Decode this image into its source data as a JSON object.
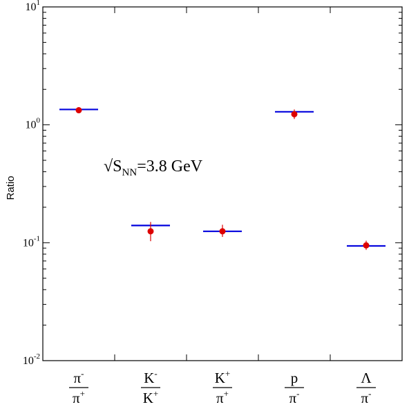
{
  "chart_data": {
    "type": "scatter",
    "ylabel": "Ratio",
    "yscale": "log",
    "ylim": [
      0.01,
      10
    ],
    "y_ticks": [
      {
        "base": "10",
        "exp": "-2",
        "value": 0.01
      },
      {
        "base": "10",
        "exp": "-1",
        "value": 0.1
      },
      {
        "base": "10",
        "exp": "0",
        "value": 1
      },
      {
        "base": "10",
        "exp": "1",
        "value": 10
      }
    ],
    "categories": [
      {
        "num": "π",
        "num_sup": "-",
        "den": "π",
        "den_sup": "+"
      },
      {
        "num": "K",
        "num_sup": "-",
        "den": "K",
        "den_sup": "+"
      },
      {
        "num": "K",
        "num_sup": "+",
        "den": "π",
        "den_sup": "+"
      },
      {
        "num": "p",
        "num_sup": "",
        "den": "π",
        "den_sup": "-"
      },
      {
        "num": "Λ",
        "num_sup": "",
        "den": "π",
        "den_sup": "-"
      }
    ],
    "series": [
      {
        "type": "scatter",
        "color": "#dd0000",
        "values": [
          1.33,
          0.125,
          0.125,
          1.23,
          0.095
        ],
        "err_low": [
          1.26,
          0.103,
          0.112,
          1.12,
          0.087
        ],
        "err_high": [
          1.4,
          0.15,
          0.142,
          1.35,
          0.104
        ]
      },
      {
        "type": "line",
        "color": "#0000dd",
        "values": [
          1.35,
          0.14,
          0.125,
          1.29,
          0.094
        ]
      }
    ],
    "annotation": {
      "prefix": "√S",
      "subscript": "NN",
      "suffix": "=3.8 GeV"
    },
    "grid": false,
    "legend": "none"
  }
}
